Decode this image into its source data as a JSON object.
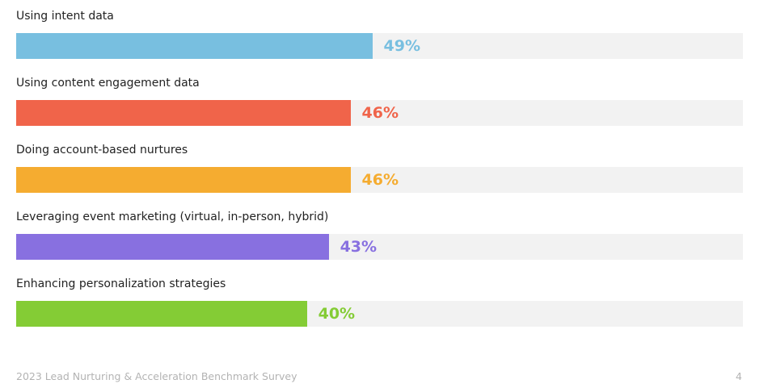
{
  "chart_data": {
    "type": "bar",
    "orientation": "horizontal",
    "categories": [
      "Using intent data",
      "Using content engagement data",
      "Doing account-based nurtures",
      "Leveraging event marketing (virtual, in-person, hybrid)",
      "Enhancing personalization strategies"
    ],
    "values": [
      49,
      46,
      46,
      43,
      40
    ],
    "value_labels": [
      "49%",
      "46%",
      "46%",
      "43%",
      "40%"
    ],
    "colors": [
      "#78bfe0",
      "#f0644a",
      "#f5ac30",
      "#8870e0",
      "#84cc35"
    ],
    "track_color": "#f2f2f2",
    "xlim": [
      0,
      100
    ],
    "grid": false
  },
  "footer": {
    "text": "2023 Lead Nurturing & Acceleration Benchmark Survey",
    "page_number": "4"
  }
}
